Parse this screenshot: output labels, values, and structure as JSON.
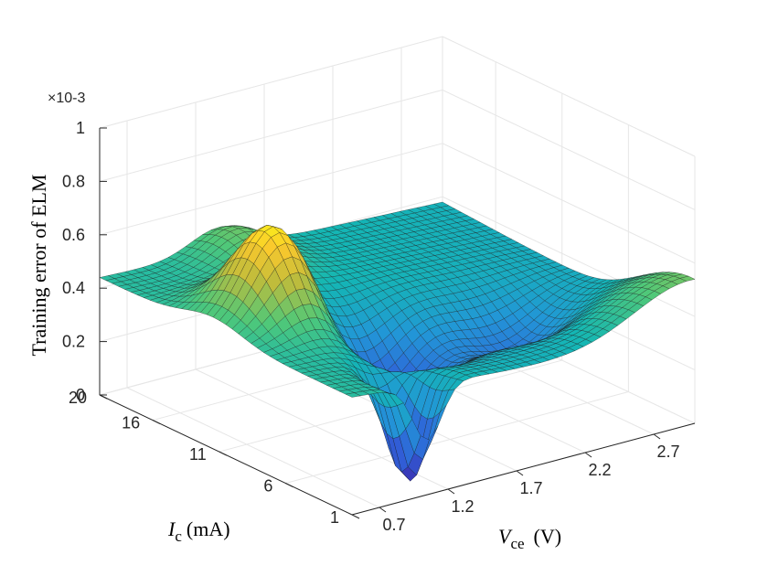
{
  "chart_data": {
    "type": "surface",
    "title": "",
    "zlabel": "Training error of ELM",
    "z_exponent": "×10-3",
    "x_axis": {
      "label_main": "V",
      "label_sub": "ce",
      "label_unit": "(V)",
      "ticks": [
        "0.7",
        "1.2",
        "1.7",
        "2.2",
        "2.7"
      ],
      "range": [
        0.5,
        3.0
      ]
    },
    "y_axis": {
      "label_main": "I",
      "label_sub": "c",
      "label_unit": "(mA)",
      "ticks": [
        "1",
        "6",
        "11",
        "16",
        "20"
      ],
      "range": [
        1,
        20
      ]
    },
    "z_axis": {
      "ticks": [
        "0",
        "0.2",
        "0.4",
        "0.6",
        "0.8",
        "1"
      ],
      "range": [
        0,
        1
      ],
      "unit_multiplier": 0.001
    },
    "grid": true,
    "colormap": "parula",
    "surface_samples": {
      "note_values": "z in units of 1e-3",
      "Ic_eq_20": [
        {
          "Vce": 0.5,
          "z": 0.44
        },
        {
          "Vce": 1.7,
          "z": 0.4
        },
        {
          "Vce": 3.0,
          "z": 0.57
        }
      ],
      "peak": {
        "Vce": 0.9,
        "Ic": 12,
        "z": 0.8
      },
      "minimum": {
        "Vce": 1.5,
        "Ic": 8,
        "z": 0.0
      }
    }
  },
  "colors": {
    "axis": "#262626",
    "grid": "#e6e6e6",
    "mesh": "#1a1a1a"
  }
}
